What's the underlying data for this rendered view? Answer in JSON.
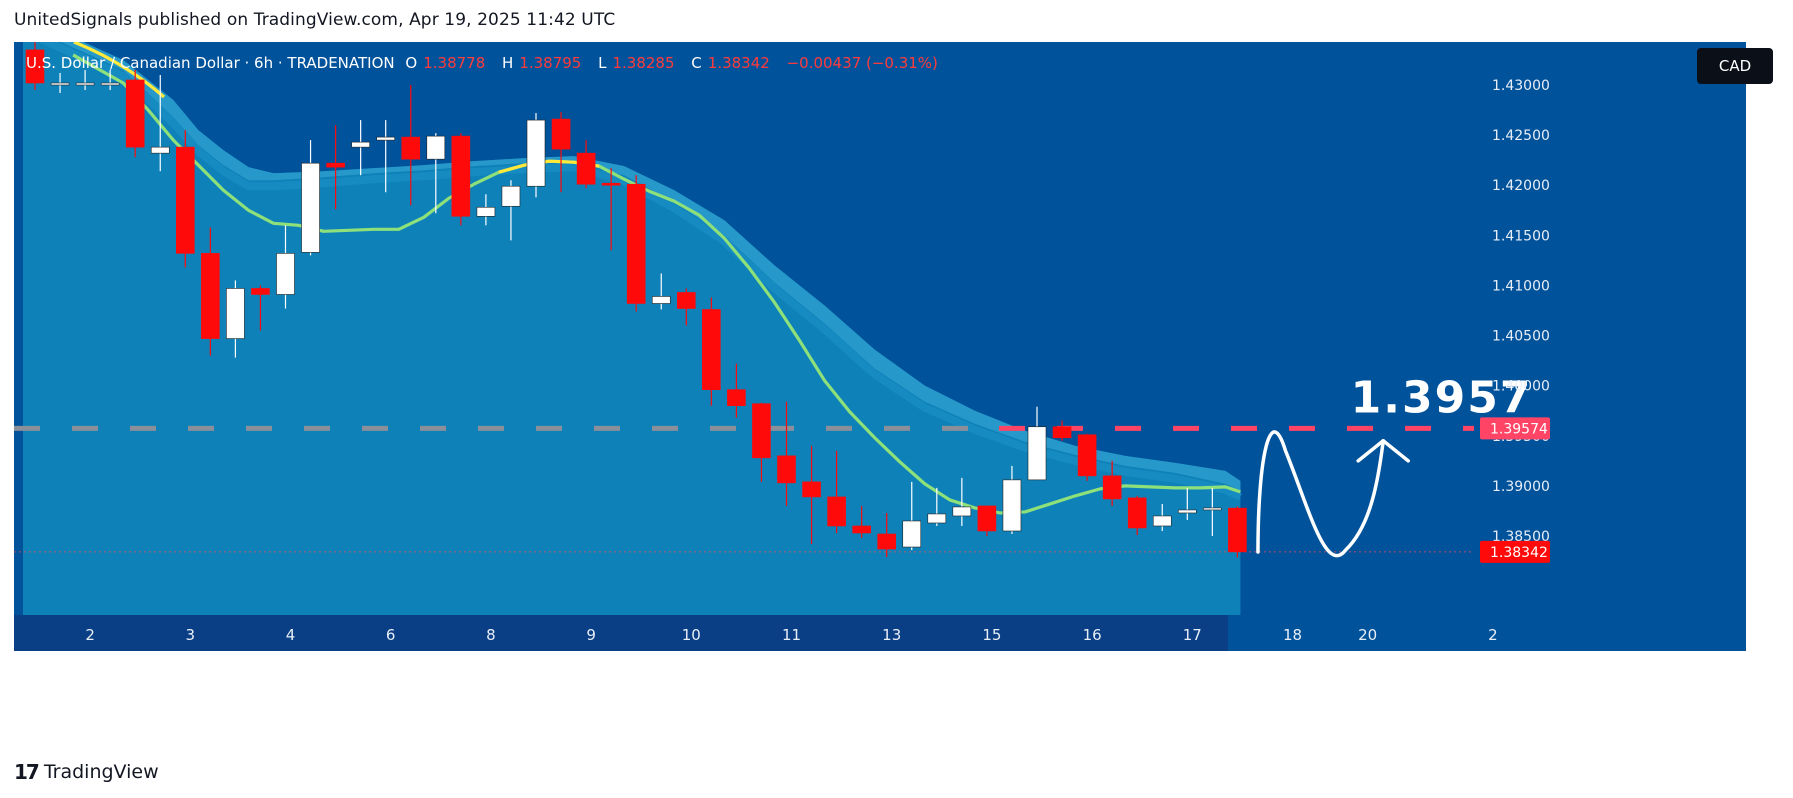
{
  "caption": "UnitedSignals published on TradingView.com, Apr 19, 2025 11:42 UTC",
  "legend": {
    "symbol": "U.S. Dollar / Canadian Dollar · 6h · TRADENATION",
    "o_label": "O",
    "o_value": "1.38778",
    "h_label": "H",
    "h_value": "1.38795",
    "l_label": "L",
    "l_value": "1.38285",
    "c_label": "C",
    "c_value": "1.38342",
    "change": "−0.00437 (−0.31%)"
  },
  "currency": "CAD",
  "footer": {
    "logo_mark": "17",
    "brand": "TradingView"
  },
  "colors": {
    "background": "#00529b",
    "cloud": "#0e82b8",
    "cloud_band": "#2b9ccc",
    "up": "#ffffff",
    "down": "#ff0a0a",
    "ma_line": "#8ee07a",
    "ma_line_highlight": "#ffe93b",
    "level_line": "#ff4466",
    "axis_band": "#0a3f86"
  },
  "chart_data": {
    "type": "candlestick",
    "symbol": "USDCAD",
    "timeframe": "6h",
    "ylim": [
      1.381,
      1.432
    ],
    "y_ticks": [
      "1.43000",
      "1.42500",
      "1.42000",
      "1.41500",
      "1.41000",
      "1.40500",
      "1.40000",
      "1.39500",
      "1.39000",
      "1.38500"
    ],
    "y_tick_values": [
      1.43,
      1.425,
      1.42,
      1.415,
      1.41,
      1.405,
      1.4,
      1.395,
      1.39,
      1.385
    ],
    "x_ticks": [
      "2",
      "3",
      "4",
      "6",
      "8",
      "9",
      "10",
      "11",
      "13",
      "15",
      "16",
      "17",
      "18",
      "20",
      "2"
    ],
    "x_tick_positions": [
      2.2,
      6.2,
      10.2,
      14.2,
      18.2,
      22.2,
      26.2,
      30.2,
      34.2,
      38.2,
      42.2,
      46.2,
      50.2,
      53.2,
      58.2
    ],
    "candles": [
      {
        "o": 1.4335,
        "h": 1.4345,
        "l": 1.4295,
        "c": 1.4302
      },
      {
        "o": 1.4302,
        "h": 1.4312,
        "l": 1.4292,
        "c": 1.4302
      },
      {
        "o": 1.4302,
        "h": 1.4315,
        "l": 1.4295,
        "c": 1.4302
      },
      {
        "o": 1.4302,
        "h": 1.4315,
        "l": 1.4295,
        "c": 1.4302
      },
      {
        "o": 1.4305,
        "h": 1.4315,
        "l": 1.4228,
        "c": 1.4238
      },
      {
        "o": 1.4232,
        "h": 1.431,
        "l": 1.4214,
        "c": 1.4238
      },
      {
        "o": 1.4238,
        "h": 1.4255,
        "l": 1.4118,
        "c": 1.4132
      },
      {
        "o": 1.4132,
        "h": 1.4158,
        "l": 1.403,
        "c": 1.4047
      },
      {
        "o": 1.4047,
        "h": 1.4105,
        "l": 1.4028,
        "c": 1.4097
      },
      {
        "o": 1.4097,
        "h": 1.41,
        "l": 1.4055,
        "c": 1.4091
      },
      {
        "o": 1.4091,
        "h": 1.416,
        "l": 1.4077,
        "c": 1.4132
      },
      {
        "o": 1.4133,
        "h": 1.4245,
        "l": 1.413,
        "c": 1.4222
      },
      {
        "o": 1.4222,
        "h": 1.426,
        "l": 1.4176,
        "c": 1.4218
      },
      {
        "o": 1.4238,
        "h": 1.4265,
        "l": 1.421,
        "c": 1.4243
      },
      {
        "o": 1.4245,
        "h": 1.4265,
        "l": 1.4193,
        "c": 1.4248
      },
      {
        "o": 1.4248,
        "h": 1.43,
        "l": 1.418,
        "c": 1.4226
      },
      {
        "o": 1.4226,
        "h": 1.4252,
        "l": 1.4172,
        "c": 1.4249
      },
      {
        "o": 1.4249,
        "h": 1.4252,
        "l": 1.416,
        "c": 1.4169
      },
      {
        "o": 1.4169,
        "h": 1.4191,
        "l": 1.416,
        "c": 1.4178
      },
      {
        "o": 1.4179,
        "h": 1.4205,
        "l": 1.4145,
        "c": 1.4199
      },
      {
        "o": 1.4199,
        "h": 1.4272,
        "l": 1.4188,
        "c": 1.4265
      },
      {
        "o": 1.4266,
        "h": 1.4273,
        "l": 1.4193,
        "c": 1.4236
      },
      {
        "o": 1.4232,
        "h": 1.4245,
        "l": 1.4197,
        "c": 1.4201
      },
      {
        "o": 1.4202,
        "h": 1.4217,
        "l": 1.4135,
        "c": 1.42
      },
      {
        "o": 1.4201,
        "h": 1.421,
        "l": 1.4074,
        "c": 1.4082
      },
      {
        "o": 1.4082,
        "h": 1.4112,
        "l": 1.4076,
        "c": 1.4089
      },
      {
        "o": 1.4093,
        "h": 1.4097,
        "l": 1.406,
        "c": 1.4077
      },
      {
        "o": 1.4076,
        "h": 1.4088,
        "l": 1.398,
        "c": 1.3996
      },
      {
        "o": 1.3996,
        "h": 1.4022,
        "l": 1.3968,
        "c": 1.398
      },
      {
        "o": 1.3982,
        "h": 1.3983,
        "l": 1.3904,
        "c": 1.3928
      },
      {
        "o": 1.393,
        "h": 1.3984,
        "l": 1.388,
        "c": 1.3903
      },
      {
        "o": 1.3904,
        "h": 1.394,
        "l": 1.3842,
        "c": 1.3889
      },
      {
        "o": 1.3889,
        "h": 1.3935,
        "l": 1.3853,
        "c": 1.386
      },
      {
        "o": 1.386,
        "h": 1.388,
        "l": 1.3848,
        "c": 1.3853
      },
      {
        "o": 1.3852,
        "h": 1.3873,
        "l": 1.3829,
        "c": 1.3837
      },
      {
        "o": 1.3839,
        "h": 1.3904,
        "l": 1.3836,
        "c": 1.3865
      },
      {
        "o": 1.3863,
        "h": 1.3898,
        "l": 1.386,
        "c": 1.3872
      },
      {
        "o": 1.387,
        "h": 1.3908,
        "l": 1.386,
        "c": 1.3879
      },
      {
        "o": 1.388,
        "h": 1.388,
        "l": 1.385,
        "c": 1.3855
      },
      {
        "o": 1.3855,
        "h": 1.392,
        "l": 1.3852,
        "c": 1.3906
      },
      {
        "o": 1.3906,
        "h": 1.3979,
        "l": 1.3906,
        "c": 1.3959
      },
      {
        "o": 1.3959,
        "h": 1.3965,
        "l": 1.3945,
        "c": 1.3948
      },
      {
        "o": 1.3951,
        "h": 1.3952,
        "l": 1.3905,
        "c": 1.391
      },
      {
        "o": 1.391,
        "h": 1.3925,
        "l": 1.388,
        "c": 1.3887
      },
      {
        "o": 1.3888,
        "h": 1.389,
        "l": 1.3851,
        "c": 1.3858
      },
      {
        "o": 1.386,
        "h": 1.3882,
        "l": 1.3855,
        "c": 1.387
      },
      {
        "o": 1.3873,
        "h": 1.3898,
        "l": 1.3866,
        "c": 1.3876
      },
      {
        "o": 1.3878,
        "h": 1.3898,
        "l": 1.385,
        "c": 1.3878
      },
      {
        "o": 1.38778,
        "h": 1.38795,
        "l": 1.38285,
        "c": 1.38342
      }
    ],
    "ma_line": [
      {
        "x": 2,
        "y": 1.433
      },
      {
        "x": 4,
        "y": 1.4302
      },
      {
        "x": 5,
        "y": 1.4275
      },
      {
        "x": 6,
        "y": 1.4245
      },
      {
        "x": 7,
        "y": 1.422
      },
      {
        "x": 8,
        "y": 1.4195
      },
      {
        "x": 9,
        "y": 1.4175
      },
      {
        "x": 10,
        "y": 1.4162
      },
      {
        "x": 11,
        "y": 1.416
      },
      {
        "x": 12,
        "y": 1.4154
      },
      {
        "x": 13,
        "y": 1.4155
      },
      {
        "x": 14,
        "y": 1.4156
      },
      {
        "x": 15,
        "y": 1.4156
      },
      {
        "x": 16,
        "y": 1.4168
      },
      {
        "x": 17,
        "y": 1.4187
      },
      {
        "x": 18,
        "y": 1.4201
      },
      {
        "x": 19,
        "y": 1.4213
      },
      {
        "x": 20,
        "y": 1.422
      },
      {
        "x": 21,
        "y": 1.4224
      },
      {
        "x": 22,
        "y": 1.4223
      },
      {
        "x": 23,
        "y": 1.4219
      },
      {
        "x": 24,
        "y": 1.4206
      },
      {
        "x": 25,
        "y": 1.4194
      },
      {
        "x": 26,
        "y": 1.4184
      },
      {
        "x": 27,
        "y": 1.417
      },
      {
        "x": 28,
        "y": 1.4147
      },
      {
        "x": 29,
        "y": 1.4117
      },
      {
        "x": 30,
        "y": 1.4083
      },
      {
        "x": 31,
        "y": 1.4045
      },
      {
        "x": 32,
        "y": 1.4005
      },
      {
        "x": 33,
        "y": 1.3974
      },
      {
        "x": 34,
        "y": 1.3948
      },
      {
        "x": 35,
        "y": 1.3924
      },
      {
        "x": 36,
        "y": 1.3902
      },
      {
        "x": 37,
        "y": 1.3886
      },
      {
        "x": 38,
        "y": 1.3878
      },
      {
        "x": 39,
        "y": 1.3873
      },
      {
        "x": 40,
        "y": 1.3874
      },
      {
        "x": 41,
        "y": 1.3882
      },
      {
        "x": 42,
        "y": 1.389
      },
      {
        "x": 43,
        "y": 1.3897
      },
      {
        "x": 44,
        "y": 1.39
      },
      {
        "x": 45,
        "y": 1.3899
      },
      {
        "x": 46,
        "y": 1.3898
      },
      {
        "x": 47,
        "y": 1.3898
      },
      {
        "x": 48,
        "y": 1.3899
      },
      {
        "x": 48.6,
        "y": 1.3894
      }
    ],
    "cloud_upper": [
      {
        "x": 0,
        "y": 1.437
      },
      {
        "x": 4,
        "y": 1.4325
      },
      {
        "x": 6,
        "y": 1.4285
      },
      {
        "x": 7,
        "y": 1.4255
      },
      {
        "x": 8,
        "y": 1.4235
      },
      {
        "x": 9,
        "y": 1.4218
      },
      {
        "x": 10,
        "y": 1.4212
      },
      {
        "x": 12,
        "y": 1.4214
      },
      {
        "x": 14,
        "y": 1.4217
      },
      {
        "x": 16,
        "y": 1.422
      },
      {
        "x": 18,
        "y": 1.4224
      },
      {
        "x": 20,
        "y": 1.4227
      },
      {
        "x": 22,
        "y": 1.4229
      },
      {
        "x": 24,
        "y": 1.4219
      },
      {
        "x": 26,
        "y": 1.4195
      },
      {
        "x": 28,
        "y": 1.4165
      },
      {
        "x": 30,
        "y": 1.412
      },
      {
        "x": 32,
        "y": 1.408
      },
      {
        "x": 34,
        "y": 1.4036
      },
      {
        "x": 36,
        "y": 1.4
      },
      {
        "x": 38,
        "y": 1.3975
      },
      {
        "x": 40,
        "y": 1.3955
      },
      {
        "x": 42,
        "y": 1.394
      },
      {
        "x": 44,
        "y": 1.393
      },
      {
        "x": 46,
        "y": 1.3923
      },
      {
        "x": 48,
        "y": 1.3915
      },
      {
        "x": 48.6,
        "y": 1.3905
      }
    ],
    "cloud_lower": [
      {
        "x": 0,
        "y": 1.436
      },
      {
        "x": 4,
        "y": 1.4315
      },
      {
        "x": 6,
        "y": 1.4268
      },
      {
        "x": 7,
        "y": 1.424
      },
      {
        "x": 8,
        "y": 1.422
      },
      {
        "x": 9,
        "y": 1.4205
      },
      {
        "x": 10,
        "y": 1.4205
      },
      {
        "x": 12,
        "y": 1.4208
      },
      {
        "x": 14,
        "y": 1.4212
      },
      {
        "x": 16,
        "y": 1.4215
      },
      {
        "x": 18,
        "y": 1.4219
      },
      {
        "x": 20,
        "y": 1.4222
      },
      {
        "x": 22,
        "y": 1.4224
      },
      {
        "x": 24,
        "y": 1.421
      },
      {
        "x": 26,
        "y": 1.4183
      },
      {
        "x": 28,
        "y": 1.415
      },
      {
        "x": 30,
        "y": 1.4103
      },
      {
        "x": 32,
        "y": 1.4062
      },
      {
        "x": 34,
        "y": 1.4017
      },
      {
        "x": 36,
        "y": 1.3984
      },
      {
        "x": 38,
        "y": 1.3962
      },
      {
        "x": 40,
        "y": 1.3944
      },
      {
        "x": 42,
        "y": 1.3931
      },
      {
        "x": 44,
        "y": 1.392
      },
      {
        "x": 46,
        "y": 1.3913
      },
      {
        "x": 48,
        "y": 1.3902
      },
      {
        "x": 48.6,
        "y": 1.3895
      }
    ],
    "target_level": {
      "value": 1.39574,
      "label": "1.39574"
    },
    "last_price": {
      "value": 1.38342,
      "label": "1.38342"
    },
    "annotation_text": "1.3957",
    "projected_path": [
      {
        "x": 49.3,
        "y": 1.3834
      },
      {
        "x": 50.2,
        "y": 1.393
      },
      {
        "x": 51.2,
        "y": 1.3892
      },
      {
        "x": 52.8,
        "y": 1.3834
      },
      {
        "x": 53.8,
        "y": 1.389
      },
      {
        "x": 54.3,
        "y": 1.3942
      }
    ],
    "arrow": {
      "tip": {
        "x": 54.3,
        "y": 1.3945
      },
      "left": {
        "x": 53.3,
        "y": 1.3925
      },
      "right": {
        "x": 55.3,
        "y": 1.3925
      }
    }
  }
}
